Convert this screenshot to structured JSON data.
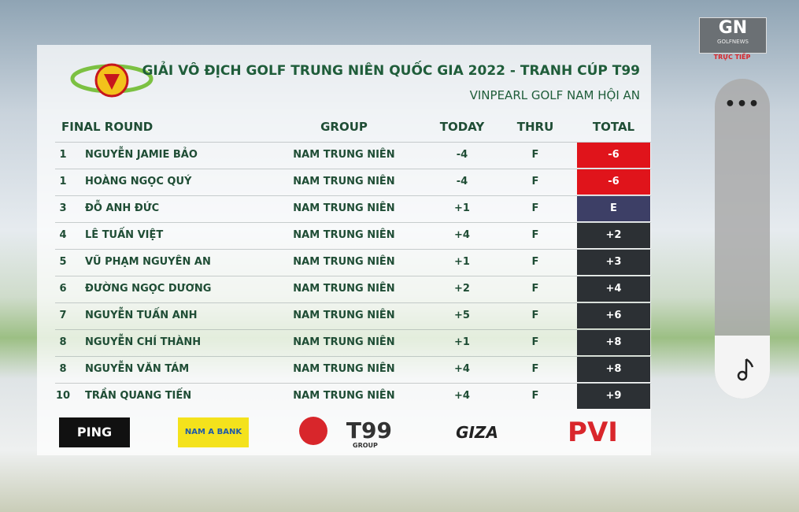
{
  "header": {
    "title": "GIẢI VÔ ĐỊCH GOLF TRUNG NIÊN QUỐC GIA 2022 - TRANH CÚP T99",
    "subtitle": "VINPEARL GOLF NAM HỘI AN"
  },
  "channel": {
    "logo": "GN",
    "brand": "GOLFNEWS",
    "status": "TRỰC TIẾP"
  },
  "table": {
    "columns": [
      "FINAL ROUND",
      "GROUP",
      "TODAY",
      "THRU",
      "TOTAL"
    ],
    "rows": [
      {
        "rank": "1",
        "name": "NGUYỄN JAMIE BẢO",
        "group": "NAM TRUNG NIÊN",
        "today": "-4",
        "thru": "F",
        "total": "-6",
        "total_color": "#e0141b"
      },
      {
        "rank": "1",
        "name": "HOÀNG NGỌC QUÝ",
        "group": "NAM TRUNG NIÊN",
        "today": "-4",
        "thru": "F",
        "total": "-6",
        "total_color": "#e0141b"
      },
      {
        "rank": "3",
        "name": "ĐỖ ANH ĐỨC",
        "group": "NAM TRUNG NIÊN",
        "today": "+1",
        "thru": "F",
        "total": "E",
        "total_color": "#3d3f66"
      },
      {
        "rank": "4",
        "name": "LÊ TUẤN VIỆT",
        "group": "NAM TRUNG NIÊN",
        "today": "+4",
        "thru": "F",
        "total": "+2",
        "total_color": "#2c3034"
      },
      {
        "rank": "5",
        "name": "VŨ PHẠM NGUYÊN AN",
        "group": "NAM TRUNG NIÊN",
        "today": "+1",
        "thru": "F",
        "total": "+3",
        "total_color": "#2c3034"
      },
      {
        "rank": "6",
        "name": "ĐƯỜNG NGỌC DƯƠNG",
        "group": "NAM TRUNG NIÊN",
        "today": "+2",
        "thru": "F",
        "total": "+4",
        "total_color": "#2c3034"
      },
      {
        "rank": "7",
        "name": "NGUYỄN TUẤN ANH",
        "group": "NAM TRUNG NIÊN",
        "today": "+5",
        "thru": "F",
        "total": "+6",
        "total_color": "#2c3034"
      },
      {
        "rank": "8",
        "name": "NGUYỄN CHÍ THÀNH",
        "group": "NAM TRUNG NIÊN",
        "today": "+1",
        "thru": "F",
        "total": "+8",
        "total_color": "#2c3034"
      },
      {
        "rank": "8",
        "name": "NGUYỄN VĂN TÁM",
        "group": "NAM TRUNG NIÊN",
        "today": "+4",
        "thru": "F",
        "total": "+8",
        "total_color": "#2c3034"
      },
      {
        "rank": "10",
        "name": "TRẦN QUANG TIẾN",
        "group": "NAM TRUNG NIÊN",
        "today": "+4",
        "thru": "F",
        "total": "+9",
        "total_color": "#2c3034"
      }
    ]
  },
  "sponsors": {
    "ping": "PING",
    "namabank": "NAM A BANK",
    "t99": "T99",
    "t99_sub": "GROUP",
    "giza": "GIZA",
    "pvi": "PVI"
  }
}
